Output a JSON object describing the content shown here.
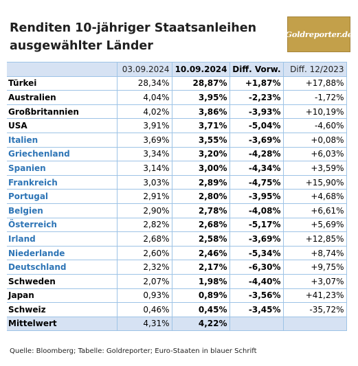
{
  "title": {
    "line1": "Renditen 10-jähriger Staatsanleihen",
    "line2": "ausgewählter Länder"
  },
  "logo": {
    "text": "Goldreporter.de",
    "background_color": "#c3a04a"
  },
  "colors": {
    "euro_text": "#2e75b6",
    "header_background": "#d6e2f3",
    "grid_line": "#9dc3e6"
  },
  "table": {
    "headers": [
      "",
      "03.09.2024",
      "10.09.2024",
      "Diff. Vorw.",
      "Diff. 12/2023"
    ],
    "rows": [
      {
        "country": "Türkei",
        "euro": false,
        "c1": "28,34%",
        "c2": "28,87%",
        "c3": "+1,87%",
        "c4": "+17,88%"
      },
      {
        "country": "Australien",
        "euro": false,
        "c1": "4,04%",
        "c2": "3,95%",
        "c3": "-2,23%",
        "c4": "-1,72%"
      },
      {
        "country": "Großbritannien",
        "euro": false,
        "c1": "4,02%",
        "c2": "3,86%",
        "c3": "-3,93%",
        "c4": "+10,19%"
      },
      {
        "country": "USA",
        "euro": false,
        "c1": "3,91%",
        "c2": "3,71%",
        "c3": "-5,04%",
        "c4": "-4,60%"
      },
      {
        "country": "Italien",
        "euro": true,
        "c1": "3,69%",
        "c2": "3,55%",
        "c3": "-3,69%",
        "c4": "+0,08%"
      },
      {
        "country": "Griechenland",
        "euro": true,
        "c1": "3,34%",
        "c2": "3,20%",
        "c3": "-4,28%",
        "c4": "+6,03%"
      },
      {
        "country": "Spanien",
        "euro": true,
        "c1": "3,14%",
        "c2": "3,00%",
        "c3": "-4,34%",
        "c4": "+3,59%"
      },
      {
        "country": "Frankreich",
        "euro": true,
        "c1": "3,03%",
        "c2": "2,89%",
        "c3": "-4,75%",
        "c4": "+15,90%"
      },
      {
        "country": "Portugal",
        "euro": true,
        "c1": "2,91%",
        "c2": "2,80%",
        "c3": "-3,95%",
        "c4": "+4,68%"
      },
      {
        "country": "Belgien",
        "euro": true,
        "c1": "2,90%",
        "c2": "2,78%",
        "c3": "-4,08%",
        "c4": "+6,61%"
      },
      {
        "country": "Österreich",
        "euro": true,
        "c1": "2,82%",
        "c2": "2,68%",
        "c3": "-5,17%",
        "c4": "+5,69%"
      },
      {
        "country": "Irland",
        "euro": true,
        "c1": "2,68%",
        "c2": "2,58%",
        "c3": "-3,69%",
        "c4": "+12,85%"
      },
      {
        "country": "Niederlande",
        "euro": true,
        "c1": "2,60%",
        "c2": "2,46%",
        "c3": "-5,34%",
        "c4": "+8,74%"
      },
      {
        "country": "Deutschland",
        "euro": true,
        "c1": "2,32%",
        "c2": "2,17%",
        "c3": "-6,30%",
        "c4": "+9,75%"
      },
      {
        "country": "Schweden",
        "euro": false,
        "c1": "2,07%",
        "c2": "1,98%",
        "c3": "-4,40%",
        "c4": "+3,07%"
      },
      {
        "country": "Japan",
        "euro": false,
        "c1": "0,93%",
        "c2": "0,89%",
        "c3": "-3,56%",
        "c4": "+41,23%"
      },
      {
        "country": "Schweiz",
        "euro": false,
        "c1": "0,46%",
        "c2": "0,45%",
        "c3": "-3,45%",
        "c4": "-35,72%"
      }
    ],
    "average": {
      "label": "Mittelwert",
      "c1": "4,31%",
      "c2": "4,22%",
      "c3": "",
      "c4": ""
    }
  },
  "source": "Quelle: Bloomberg; Tabelle: Goldreporter; Euro-Staaten in blauer Schrift"
}
